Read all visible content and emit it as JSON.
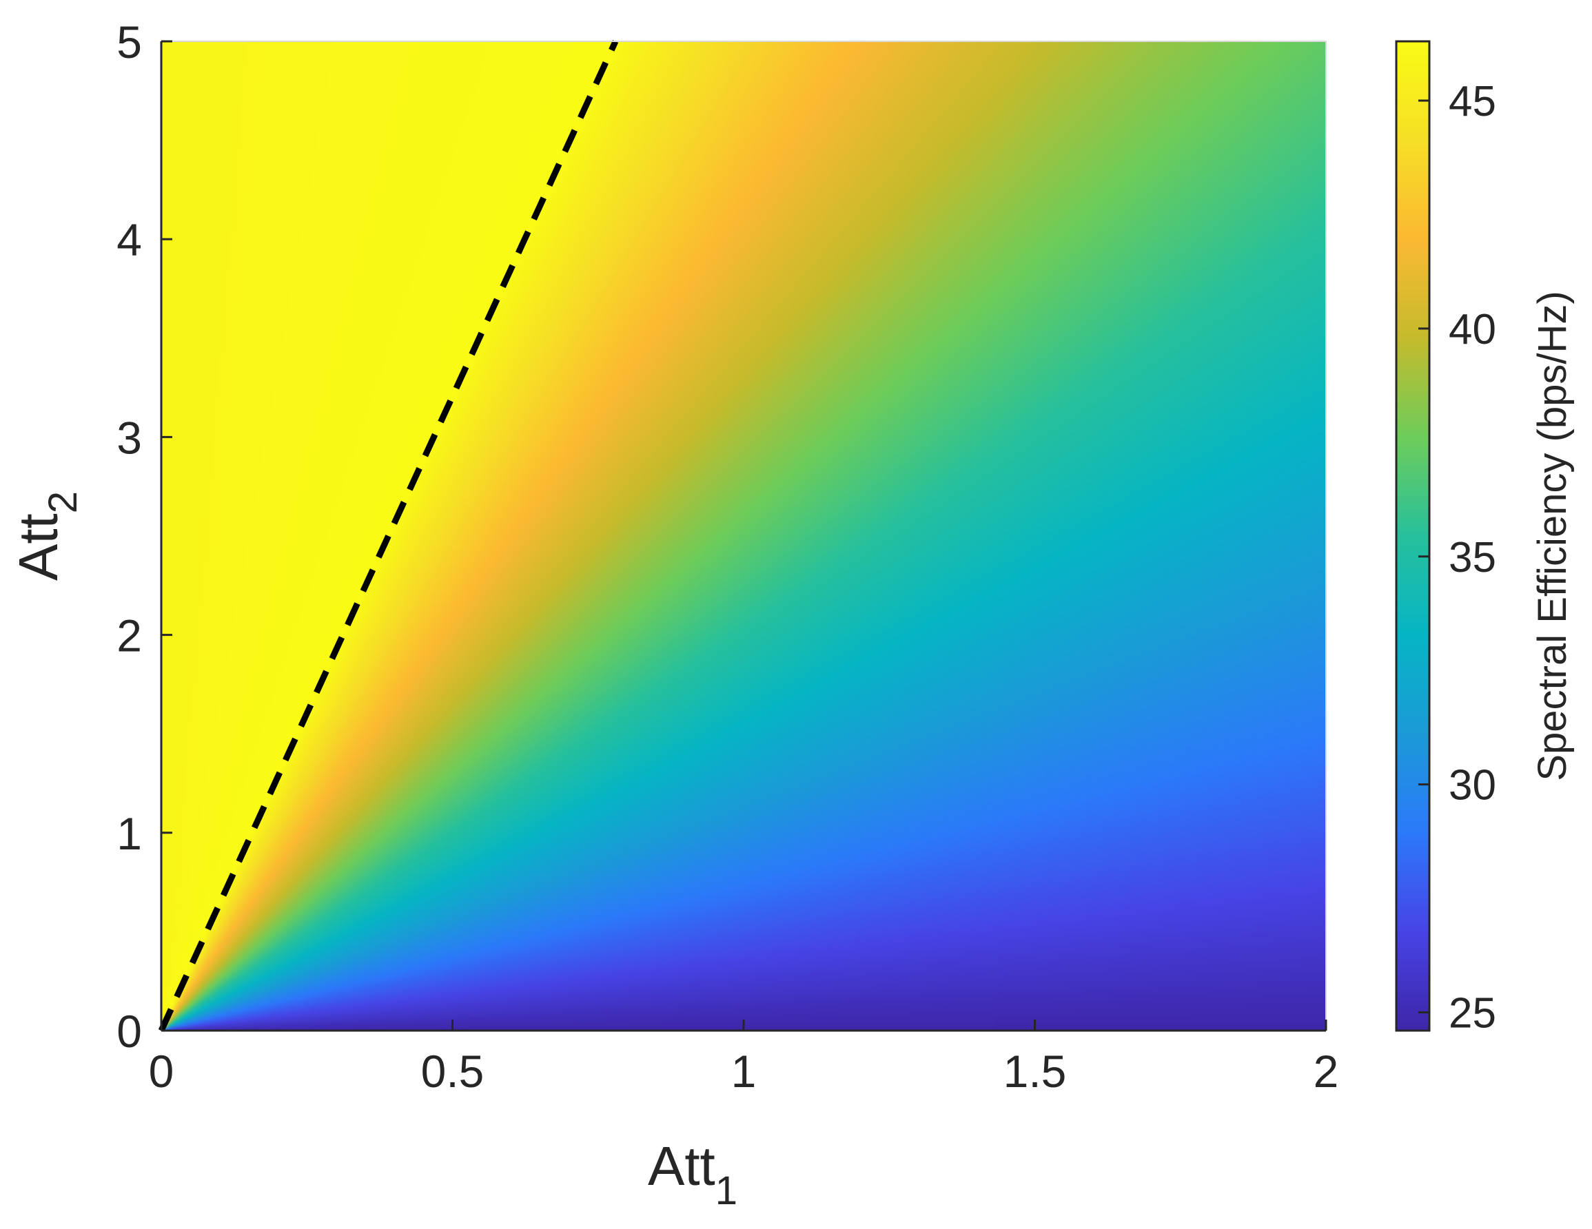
{
  "chart_data": {
    "type": "heatmap",
    "title": "",
    "xlabel": "Att",
    "xlabel_subscript": "1",
    "ylabel": "Att",
    "ylabel_subscript": "2",
    "xlim": [
      0,
      2
    ],
    "ylim": [
      0,
      5
    ],
    "x_ticks": [
      0,
      0.5,
      1,
      1.5,
      2
    ],
    "x_tick_labels": [
      "0",
      "0.5",
      "1",
      "1.5",
      "2"
    ],
    "y_ticks": [
      0,
      1,
      2,
      3,
      4,
      5
    ],
    "y_tick_labels": [
      "0",
      "1",
      "2",
      "3",
      "4",
      "5"
    ],
    "grid": false,
    "colormap": "parula",
    "colormap_stops": [
      "#3e26a8",
      "#4744e6",
      "#2c79fa",
      "#1b9ad7",
      "#06b5c4",
      "#27c09c",
      "#6ecc5a",
      "#c5bb2c",
      "#fbb932",
      "#f6df26",
      "#f9fb15"
    ],
    "colorbar": {
      "label": "Spectral Efficiency (bps/Hz)",
      "range": [
        24.6,
        46.3
      ],
      "ticks": [
        25,
        30,
        35,
        40,
        45
      ],
      "tick_labels": [
        "25",
        "30",
        "35",
        "40",
        "45"
      ],
      "position": "right"
    },
    "field_description_values": {
      "max_value": 46.3,
      "min_value": 24.6,
      "value_along_diagonal_att2_eq_2.5att1": 46.3,
      "value_at_x_2_y_5": 38.5,
      "value_at_x_2_y_3": 35.0,
      "value_at_x_2_y_0": 24.8,
      "value_at_x_1_y_2": 37.5,
      "value_at_x_1_y_4": 41.5
    },
    "series": [
      {
        "type": "line",
        "style": "dashed",
        "color": "#000000",
        "x": [
          0,
          0.78
        ],
        "y": [
          0,
          5
        ]
      }
    ]
  }
}
